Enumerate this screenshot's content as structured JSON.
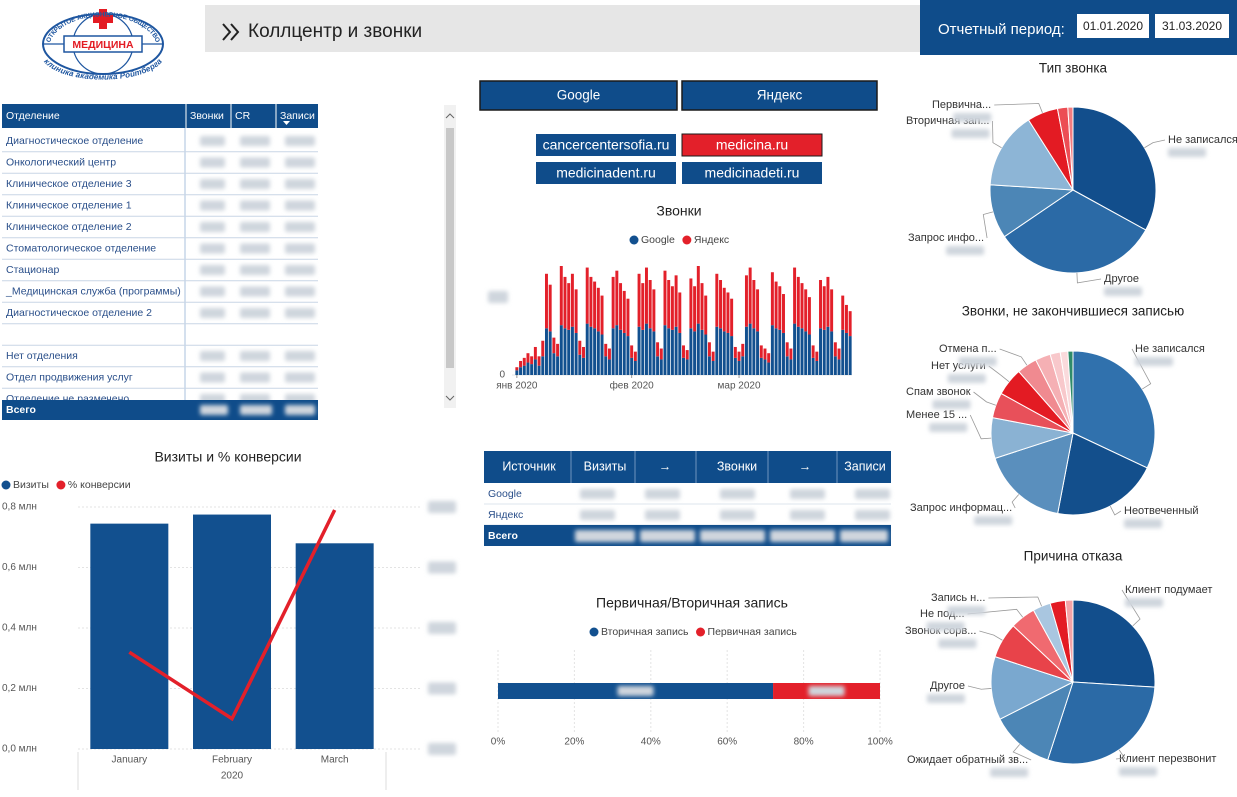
{
  "header": {
    "logo": {
      "top": "ОТКРЫТОЕ АКЦИОНЕРНОЕ ОБЩЕСТВО",
      "name": "МЕДИЦИНА",
      "bottom": "клиника академика Ройтберга"
    },
    "title": "Коллцентр и звонки",
    "period_label": "Отчетный период:",
    "date_from": "01.01.2020",
    "date_to": "31.03.2020"
  },
  "filters": {
    "engines": [
      "Google",
      "Яндекс"
    ],
    "sites": [
      "cancercentersofia.ru",
      "medicina.ru",
      "medicinadent.ru",
      "medicinadeti.ru"
    ],
    "selected_site": 1
  },
  "departments": {
    "columns": [
      "Отделение",
      "Звонки",
      "CR",
      "Записи"
    ],
    "rows": [
      "Диагностическое отделение",
      "Онкологический центр",
      "Клиническое отделение 3",
      "Клиническое отделение 1",
      "Клиническое отделение 2",
      "Стоматологическое отделение",
      "Стационар",
      "_Медицинская служба (программы)",
      "Диагностическое отделение 2",
      "Нет отделения",
      "Отдел продвижения услуг",
      "Отделение не размечено"
    ],
    "total": "Всего"
  },
  "sources": {
    "columns": [
      "Источник",
      "Визиты",
      "→",
      "Звонки",
      "→",
      "Записи"
    ],
    "rows": [
      "Google",
      "Яндекс"
    ],
    "total": "Всего"
  },
  "chart_data": [
    {
      "type": "bar",
      "stacked": true,
      "title": "Звонки",
      "x": [
        1,
        2,
        3,
        4,
        5,
        6,
        7,
        8,
        9,
        10,
        11,
        12,
        13,
        14,
        15,
        16,
        17,
        18,
        19,
        20,
        21,
        22,
        23,
        24,
        25,
        26,
        27,
        28,
        29,
        30,
        31,
        32,
        33,
        34,
        35,
        36,
        37,
        38,
        39,
        40,
        41,
        42,
        43,
        44,
        45,
        46,
        47,
        48,
        49,
        50,
        51,
        52,
        53,
        54,
        55,
        56,
        57,
        58,
        59,
        60,
        61,
        62,
        63,
        64,
        65,
        66,
        67,
        68,
        69,
        70,
        71,
        72,
        73,
        74,
        75,
        76,
        77,
        78,
        79,
        80,
        81,
        82,
        83,
        84,
        85,
        86,
        87,
        88,
        89,
        90,
        91
      ],
      "xlim": [
        0.5,
        91.5
      ],
      "xticks": [
        {
          "value": 1,
          "label": "янв 2020"
        },
        {
          "value": 32,
          "label": "фев 2020"
        },
        {
          "value": 61,
          "label": "мар 2020"
        }
      ],
      "ylim": [
        0,
        70
      ],
      "yticks": [
        0
      ],
      "series": [
        {
          "name": "Google",
          "color": "#12508f",
          "values": [
            3,
            5,
            6,
            8,
            7,
            10,
            6,
            12,
            30,
            28,
            14,
            12,
            32,
            30,
            29,
            31,
            27,
            13,
            11,
            33,
            31,
            30,
            28,
            26,
            12,
            10,
            30,
            32,
            29,
            27,
            25,
            11,
            9,
            31,
            29,
            33,
            30,
            28,
            12,
            10,
            32,
            30,
            29,
            31,
            27,
            11,
            10,
            30,
            28,
            33,
            29,
            26,
            12,
            9,
            31,
            30,
            28,
            27,
            25,
            11,
            9,
            12,
            31,
            33,
            30,
            28,
            11,
            10,
            8,
            32,
            30,
            29,
            27,
            12,
            10,
            33,
            31,
            30,
            28,
            26,
            11,
            9,
            30,
            29,
            31,
            28,
            12,
            10,
            29,
            27,
            25
          ]
        },
        {
          "name": "Яндекс",
          "color": "#e3202a",
          "values": [
            2,
            4,
            5,
            6,
            5,
            8,
            6,
            10,
            35,
            30,
            10,
            8,
            38,
            33,
            30,
            34,
            28,
            9,
            7,
            36,
            32,
            30,
            28,
            25,
            8,
            7,
            33,
            35,
            30,
            27,
            24,
            8,
            6,
            34,
            30,
            36,
            31,
            27,
            9,
            7,
            35,
            31,
            28,
            33,
            26,
            8,
            6,
            32,
            29,
            37,
            30,
            25,
            9,
            6,
            34,
            31,
            28,
            26,
            24,
            7,
            6,
            8,
            33,
            36,
            31,
            27,
            8,
            7,
            6,
            34,
            30,
            28,
            25,
            9,
            7,
            36,
            32,
            29,
            27,
            24,
            8,
            6,
            31,
            28,
            32,
            27,
            9,
            7,
            22,
            18,
            16
          ]
        }
      ]
    },
    {
      "type": "bar",
      "title": "Визиты и % конверсии",
      "categories": [
        "January",
        "February",
        "March"
      ],
      "x_label": "2020",
      "ylim": [
        0,
        800000
      ],
      "yticks": [
        {
          "value": 0,
          "label": "0,0 млн"
        },
        {
          "value": 200000,
          "label": "0,2 млн"
        },
        {
          "value": 400000,
          "label": "0,4 млн"
        },
        {
          "value": 600000,
          "label": "0,6 млн"
        },
        {
          "value": 800000,
          "label": "0,8 млн"
        }
      ],
      "y2lim": [
        0,
        0.8
      ],
      "grid": true,
      "series": [
        {
          "name": "Визиты",
          "color": "#12508f",
          "values": [
            745000,
            775000,
            680000
          ]
        },
        {
          "name": "% конверсии",
          "type": "line",
          "axis": "y2",
          "color": "#e3202a",
          "values": [
            0.32,
            0.1,
            0.79
          ]
        }
      ]
    },
    {
      "type": "bar",
      "orientation": "horizontal",
      "stacked": true,
      "title": "Первичная/Вторичная запись",
      "categories": [
        null
      ],
      "xlim": [
        0,
        100
      ],
      "xticks": [
        {
          "value": 0,
          "label": "0%"
        },
        {
          "value": 20,
          "label": "20%"
        },
        {
          "value": 40,
          "label": "40%"
        },
        {
          "value": 60,
          "label": "60%"
        },
        {
          "value": 80,
          "label": "80%"
        },
        {
          "value": 100,
          "label": "100%"
        }
      ],
      "grid": true,
      "series": [
        {
          "name": "Вторичная запись",
          "color": "#12508f",
          "values": [
            72
          ]
        },
        {
          "name": "Первичная запись",
          "color": "#e3202a",
          "values": [
            28
          ]
        }
      ]
    },
    {
      "type": "pie",
      "title": "Тип звонка",
      "categories": [
        "Не записался",
        "Другое",
        "Запрос инфо...",
        "Вторичная зап...",
        "Первична...",
        null,
        null
      ],
      "values": [
        33,
        32.5,
        10.5,
        15,
        6,
        2,
        1
      ],
      "colors": [
        "#124e8c",
        "#2b6aa6",
        "#4c86b6",
        "#8db5d6",
        "#e31b23",
        "#ec4d54",
        "#f27c80"
      ]
    },
    {
      "type": "pie",
      "title": "Звонки, не закончившиеся записью",
      "categories": [
        "Не записался",
        "Неотвеченный",
        "Запрос информац...",
        "Менее 15 ...",
        "Спам звонок",
        "Нет услуги",
        "Отмена п...",
        null,
        null,
        null,
        null
      ],
      "values": [
        32,
        21,
        17,
        8,
        5,
        5.5,
        4,
        3,
        2,
        1.5,
        1
      ],
      "colors": [
        "#3071ad",
        "#134f8c",
        "#5a8fbd",
        "#8ab2d3",
        "#e8505a",
        "#e31b23",
        "#f08a90",
        "#f5b0b4",
        "#f8c8cb",
        "#fadadc",
        "#2e8b6a"
      ]
    },
    {
      "type": "pie",
      "title": "Причина отказа",
      "categories": [
        "Клиент подумает",
        "Клиент перезвонит",
        "Ожидает обратный зв...",
        "Другое",
        "Звонок сорв...",
        "Не под...",
        "Запись н...",
        null,
        null
      ],
      "values": [
        26,
        29,
        12.5,
        12.5,
        7,
        5,
        3.5,
        3,
        1.5
      ],
      "colors": [
        "#124e8c",
        "#2b6aa6",
        "#4c86b6",
        "#7aa8cf",
        "#e8434a",
        "#f06a70",
        "#a9c6e0",
        "#e31b23",
        "#f4a3a7"
      ]
    }
  ]
}
